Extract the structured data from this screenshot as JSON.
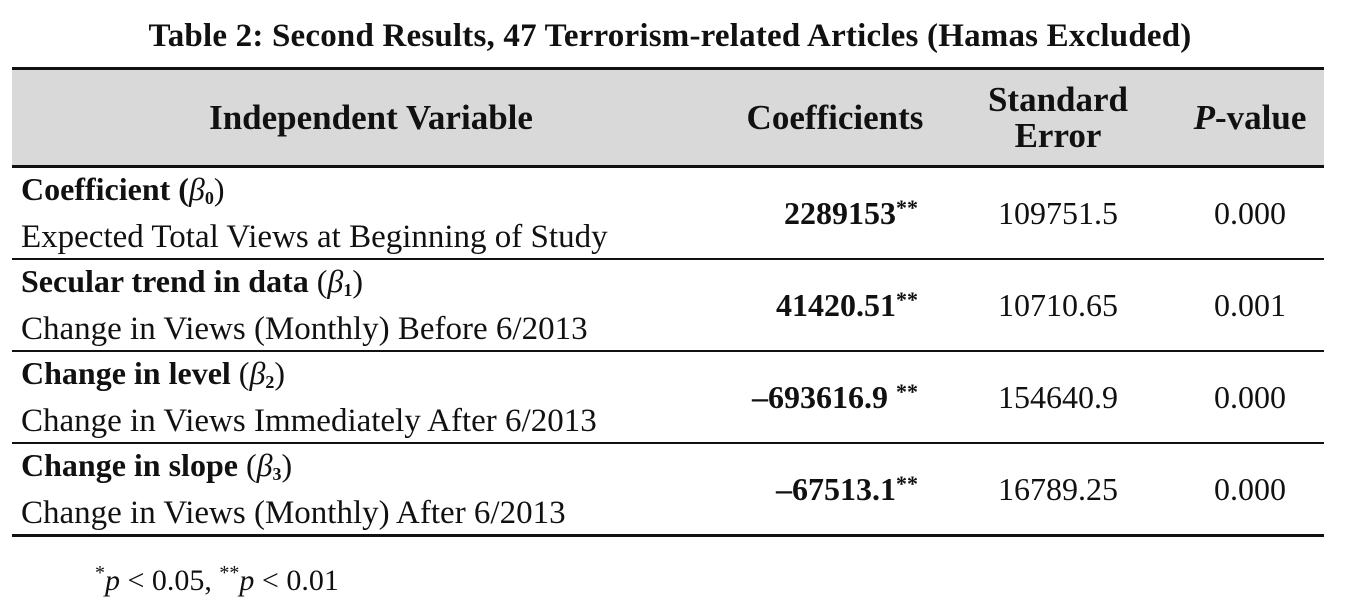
{
  "title": "Table 2: Second Results, 47 Terrorism-related Articles (Hamas Excluded)",
  "headers": {
    "variable": "Independent Variable",
    "coefficients": "Coefficients",
    "std_error_line1": "Standard",
    "std_error_line2": "Error",
    "pvalue_italic": "P",
    "pvalue_rest": "-value"
  },
  "rows": [
    {
      "name": "Coefficient",
      "symbol": "β",
      "subscript": "0",
      "description": "Expected Total Views at Beginning of Study",
      "coefficient": "2289153",
      "significance": "**",
      "std_error": "109751.5",
      "p_value": "0.000"
    },
    {
      "name": "Secular trend in data",
      "symbol": "β",
      "subscript": "1",
      "description": "Change in Views (Monthly) Before 6/2013",
      "coefficient": "41420.51",
      "significance": "**",
      "std_error": "10710.65",
      "p_value": "0.001"
    },
    {
      "name": "Change in level",
      "symbol": "β",
      "subscript": "2",
      "description": "Change in Views Immediately After 6/2013",
      "coefficient": "–693616.9 ",
      "significance": "**",
      "std_error": "154640.9",
      "p_value": "0.000"
    },
    {
      "name": "Change in slope",
      "symbol": "β",
      "subscript": "3",
      "description": "Change in Views (Monthly) After 6/2013",
      "coefficient": "–67513.1",
      "significance": "**",
      "std_error": "16789.25",
      "p_value": "0.000"
    }
  ],
  "footnote": {
    "star1": "*",
    "p1": "p",
    "text1": " < 0.05, ",
    "star2": "**",
    "p2": "p",
    "text2": " < 0.01"
  }
}
